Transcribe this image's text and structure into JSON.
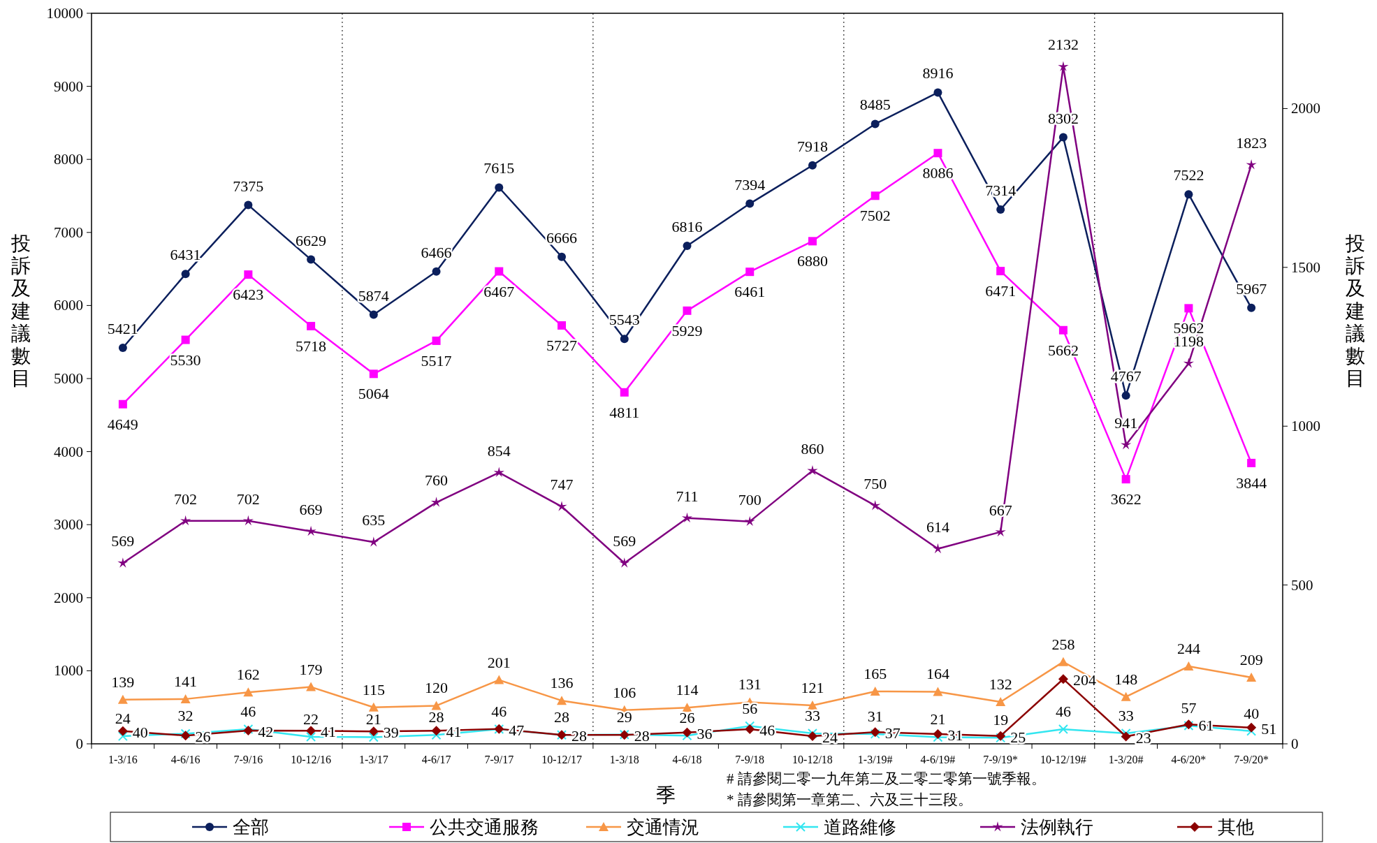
{
  "chart_data": {
    "type": "line",
    "xlabel": "季",
    "ylabel": "投訴及建議數目",
    "y2label": "投訴及建議數目",
    "categories": [
      "1-3/16",
      "4-6/16",
      "7-9/16",
      "10-12/16",
      "1-3/17",
      "4-6/17",
      "7-9/17",
      "10-12/17",
      "1-3/18",
      "4-6/18",
      "7-9/18",
      "10-12/18",
      "1-3/19#",
      "4-6/19#",
      "7-9/19*",
      "10-12/19#",
      "1-3/20#",
      "4-6/20*",
      "7-9/20*"
    ],
    "series": [
      {
        "name": "全部",
        "color": "#0b1f5c",
        "marker": "circle",
        "values": [
          5421,
          6431,
          7375,
          6629,
          5874,
          6466,
          7615,
          6666,
          5543,
          6816,
          7394,
          7918,
          8485,
          8916,
          7314,
          8302,
          4767,
          7522,
          5967
        ]
      },
      {
        "name": "公共交通服務",
        "color": "#ff00ff",
        "marker": "square",
        "values": [
          4649,
          5530,
          6423,
          5718,
          5064,
          5517,
          6467,
          5727,
          4811,
          5929,
          6461,
          6880,
          7502,
          8086,
          6471,
          5662,
          3622,
          5962,
          3844
        ]
      },
      {
        "name": "交通情況",
        "color": "#f79646",
        "marker": "triangle",
        "axis": "y2",
        "values": [
          139,
          141,
          162,
          179,
          115,
          120,
          201,
          136,
          106,
          114,
          131,
          121,
          165,
          164,
          132,
          258,
          148,
          244,
          209
        ]
      },
      {
        "name": "道路維修",
        "color": "#33e6f0",
        "marker": "cross",
        "axis": "y2",
        "values": [
          24,
          32,
          46,
          22,
          21,
          28,
          46,
          28,
          29,
          26,
          56,
          33,
          31,
          21,
          19,
          46,
          33,
          57,
          40
        ]
      },
      {
        "name": "法例執行",
        "color": "#800080",
        "marker": "star",
        "axis": "y2",
        "values": [
          569,
          702,
          702,
          669,
          635,
          760,
          854,
          747,
          569,
          711,
          700,
          860,
          750,
          614,
          667,
          2132,
          941,
          1198,
          1823
        ]
      },
      {
        "name": "其他",
        "color": "#8b0000",
        "marker": "diamond",
        "axis": "y2",
        "values": [
          40,
          26,
          42,
          41,
          39,
          41,
          47,
          28,
          28,
          36,
          46,
          24,
          37,
          31,
          25,
          204,
          23,
          61,
          51
        ]
      }
    ],
    "ylim": [
      0,
      10000
    ],
    "yticks": [
      0,
      1000,
      2000,
      3000,
      4000,
      5000,
      6000,
      7000,
      8000,
      9000,
      10000
    ],
    "y2lim": [
      0,
      2300
    ],
    "y2ticks": [
      0,
      500,
      1000,
      1500,
      2000
    ],
    "annotations": [
      "# 請參閱二零一九年第二及二零二零第一號季報。",
      "* 請參閱第一章第二、六及三十三段。"
    ],
    "data_labels": true,
    "legend": "bottom",
    "grid": false,
    "line_style": "solid"
  }
}
